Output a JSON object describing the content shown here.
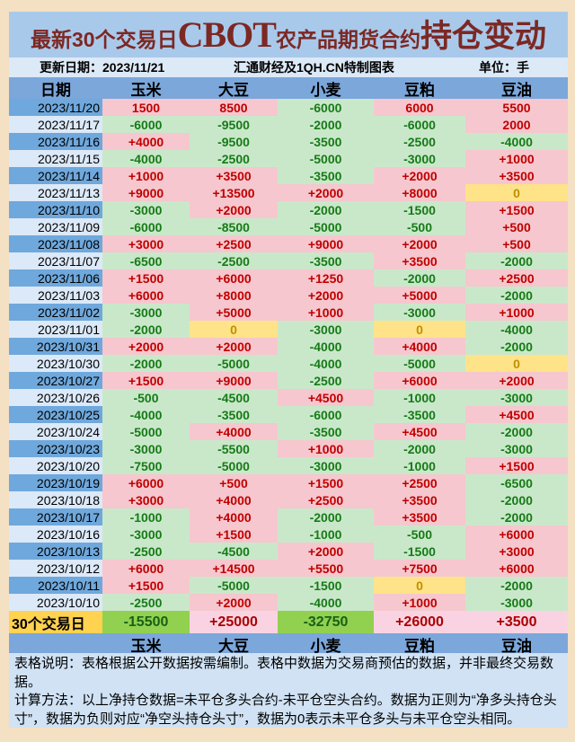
{
  "title": {
    "prefix": "最新30个交易日",
    "brand": "CBOT",
    "middle": "农产品期货合约",
    "suffix": "持仓变动"
  },
  "info": {
    "update": "更新日期：2023/11/21",
    "source": "汇通财经及1QH.CN特制图表",
    "unit": "单位：手"
  },
  "table": {
    "columns": [
      "日期",
      "玉米",
      "大豆",
      "小麦",
      "豆粕",
      "豆油"
    ],
    "rows": [
      {
        "date": "2023/11/20",
        "values": [
          "1500",
          "8500",
          "-6000",
          "6000",
          "5500"
        ]
      },
      {
        "date": "2023/11/17",
        "values": [
          "-6000",
          "-9500",
          "-2000",
          "-6000",
          "2000"
        ]
      },
      {
        "date": "2023/11/16",
        "values": [
          "+4000",
          "-9500",
          "-3500",
          "-2500",
          "-4000"
        ]
      },
      {
        "date": "2023/11/15",
        "values": [
          "-4000",
          "-2500",
          "-5000",
          "-3000",
          "+1000"
        ]
      },
      {
        "date": "2023/11/14",
        "values": [
          "+1000",
          "+3500",
          "-3500",
          "+2000",
          "+3500"
        ]
      },
      {
        "date": "2023/11/13",
        "values": [
          "+9000",
          "+13500",
          "+2000",
          "+8000",
          "0"
        ]
      },
      {
        "date": "2023/11/10",
        "values": [
          "-3000",
          "+2000",
          "-2000",
          "-1500",
          "+1500"
        ]
      },
      {
        "date": "2023/11/09",
        "values": [
          "-6000",
          "-8500",
          "-5000",
          "-500",
          "+500"
        ]
      },
      {
        "date": "2023/11/08",
        "values": [
          "+3000",
          "+2500",
          "+9000",
          "+2000",
          "+500"
        ]
      },
      {
        "date": "2023/11/07",
        "values": [
          "-6500",
          "-2500",
          "-3500",
          "+3500",
          "-2000"
        ]
      },
      {
        "date": "2023/11/06",
        "values": [
          "+1500",
          "+6000",
          "+1250",
          "-2000",
          "+2500"
        ]
      },
      {
        "date": "2023/11/03",
        "values": [
          "+6000",
          "+8000",
          "+2000",
          "+5000",
          "-2000"
        ]
      },
      {
        "date": "2023/11/02",
        "values": [
          "-3000",
          "+5000",
          "+1000",
          "-3000",
          "+1000"
        ]
      },
      {
        "date": "2023/11/01",
        "values": [
          "-2000",
          "0",
          "-3000",
          "0",
          "-4000"
        ]
      },
      {
        "date": "2023/10/31",
        "values": [
          "+2000",
          "+2000",
          "-4000",
          "+4000",
          "-2000"
        ]
      },
      {
        "date": "2023/10/30",
        "values": [
          "-2000",
          "-5000",
          "-4000",
          "-5000",
          "0"
        ]
      },
      {
        "date": "2023/10/27",
        "values": [
          "+1500",
          "+9000",
          "-2500",
          "+6000",
          "+2000"
        ]
      },
      {
        "date": "2023/10/26",
        "values": [
          "-500",
          "-4500",
          "+4500",
          "-1000",
          "-3000"
        ]
      },
      {
        "date": "2023/10/25",
        "values": [
          "-4000",
          "-3500",
          "-6000",
          "-3500",
          "+4500"
        ]
      },
      {
        "date": "2023/10/24",
        "values": [
          "-5000",
          "+4000",
          "-3500",
          "+4500",
          "-2000"
        ]
      },
      {
        "date": "2023/10/23",
        "values": [
          "-3000",
          "-5500",
          "+1000",
          "-2000",
          "-3000"
        ]
      },
      {
        "date": "2023/10/20",
        "values": [
          "-7500",
          "-5000",
          "-3000",
          "-1000",
          "+1500"
        ]
      },
      {
        "date": "2023/10/19",
        "values": [
          "+6000",
          "+500",
          "+1500",
          "+2500",
          "-6500"
        ]
      },
      {
        "date": "2023/10/18",
        "values": [
          "+3000",
          "+4000",
          "+2500",
          "+3500",
          "-2000"
        ]
      },
      {
        "date": "2023/10/17",
        "values": [
          "-1000",
          "+4000",
          "-2000",
          "+3500",
          "-2000"
        ]
      },
      {
        "date": "2023/10/16",
        "values": [
          "-3000",
          "+1500",
          "-1000",
          "-500",
          "+6000"
        ]
      },
      {
        "date": "2023/10/13",
        "values": [
          "-2500",
          "-4500",
          "+2000",
          "-1500",
          "+3000"
        ]
      },
      {
        "date": "2023/10/12",
        "values": [
          "+6000",
          "+14500",
          "+5500",
          "+7500",
          "+6000"
        ]
      },
      {
        "date": "2023/10/11",
        "values": [
          "+1500",
          "-5000",
          "-1500",
          "0",
          "-2000"
        ]
      },
      {
        "date": "2023/10/10",
        "values": [
          "-2500",
          "+2000",
          "-4000",
          "+1000",
          "-3000"
        ]
      }
    ],
    "summary": {
      "label": "30个交易日",
      "values": [
        "-15500",
        "+25000",
        "-32750",
        "+26000",
        "+3500"
      ]
    },
    "footer_columns": [
      "",
      "玉米",
      "大豆",
      "小麦",
      "豆粕",
      "豆油"
    ]
  },
  "notes": {
    "p1": "表格说明：表格根据公开数据按需编制。表格中数据为交易商预估的数据，并非最终交易数据。",
    "p2": "计算方法：以上净持仓数据=未平仓多头合约-未平仓空头合约。数据为正则为“净多头持仓头寸”，数据为负则对应“净空头持仓头寸”，数据为0表示未平仓多头与未平仓空头相同。"
  },
  "colors": {
    "page_bg": "#F4E0C3",
    "title_bg": "#A9C9EB",
    "title_text": "#7C2823",
    "info_bg": "#DCE9F7",
    "header_bg": "#7BA7DB",
    "date_dark_bg": "#6FA8DC",
    "date_light_bg": "#DCE9F8",
    "positive_bg": "#F6C7CE",
    "negative_bg": "#C9E8CA",
    "zero_bg": "#FFE388",
    "positive_text": "#C00000",
    "negative_text": "#177A17",
    "zero_text": "#BF8F00",
    "summary_label_bg": "#FFD24F",
    "summary_positive_bg": "#FAD3E2",
    "summary_negative_bg": "#92D050",
    "notes_bg": "#D0E2F4"
  },
  "chart_data": {
    "type": "table",
    "title": "最新30个交易日CBOT农产品期货合约持仓变动",
    "updated": "2023/11/21",
    "source": "汇通财经及1QH.CN特制图表",
    "unit": "手",
    "columns": [
      "日期",
      "玉米",
      "大豆",
      "小麦",
      "豆粕",
      "豆油"
    ],
    "rows": [
      [
        "2023/11/20",
        1500,
        8500,
        -6000,
        6000,
        5500
      ],
      [
        "2023/11/17",
        -6000,
        -9500,
        -2000,
        -6000,
        2000
      ],
      [
        "2023/11/16",
        4000,
        -9500,
        -3500,
        -2500,
        -4000
      ],
      [
        "2023/11/15",
        -4000,
        -2500,
        -5000,
        -3000,
        1000
      ],
      [
        "2023/11/14",
        1000,
        3500,
        -3500,
        2000,
        3500
      ],
      [
        "2023/11/13",
        9000,
        13500,
        2000,
        8000,
        0
      ],
      [
        "2023/11/10",
        -3000,
        2000,
        -2000,
        -1500,
        1500
      ],
      [
        "2023/11/09",
        -6000,
        -8500,
        -5000,
        -500,
        500
      ],
      [
        "2023/11/08",
        3000,
        2500,
        9000,
        2000,
        500
      ],
      [
        "2023/11/07",
        -6500,
        -2500,
        -3500,
        3500,
        -2000
      ],
      [
        "2023/11/06",
        1500,
        6000,
        1250,
        -2000,
        2500
      ],
      [
        "2023/11/03",
        6000,
        8000,
        2000,
        5000,
        -2000
      ],
      [
        "2023/11/02",
        -3000,
        5000,
        1000,
        -3000,
        1000
      ],
      [
        "2023/11/01",
        -2000,
        0,
        -3000,
        0,
        -4000
      ],
      [
        "2023/10/31",
        2000,
        2000,
        -4000,
        4000,
        -2000
      ],
      [
        "2023/10/30",
        -2000,
        -5000,
        -4000,
        -5000,
        0
      ],
      [
        "2023/10/27",
        1500,
        9000,
        -2500,
        6000,
        2000
      ],
      [
        "2023/10/26",
        -500,
        -4500,
        4500,
        -1000,
        -3000
      ],
      [
        "2023/10/25",
        -4000,
        -3500,
        -6000,
        -3500,
        4500
      ],
      [
        "2023/10/24",
        -5000,
        4000,
        -3500,
        4500,
        -2000
      ],
      [
        "2023/10/23",
        -3000,
        -5500,
        1000,
        -2000,
        -3000
      ],
      [
        "2023/10/20",
        -7500,
        -5000,
        -3000,
        -1000,
        1500
      ],
      [
        "2023/10/19",
        6000,
        500,
        1500,
        2500,
        -6500
      ],
      [
        "2023/10/18",
        3000,
        4000,
        2500,
        3500,
        -2000
      ],
      [
        "2023/10/17",
        -1000,
        4000,
        -2000,
        3500,
        -2000
      ],
      [
        "2023/10/16",
        -3000,
        1500,
        -1000,
        -500,
        6000
      ],
      [
        "2023/10/13",
        -2500,
        -4500,
        2000,
        -1500,
        3000
      ],
      [
        "2023/10/12",
        6000,
        14500,
        5500,
        7500,
        6000
      ],
      [
        "2023/10/11",
        1500,
        -5000,
        -1500,
        0,
        -2000
      ],
      [
        "2023/10/10",
        -2500,
        2000,
        -4000,
        1000,
        -3000
      ]
    ],
    "summary_row": {
      "label": "30个交易日",
      "values": [
        -15500,
        25000,
        -32750,
        26000,
        3500
      ]
    }
  }
}
